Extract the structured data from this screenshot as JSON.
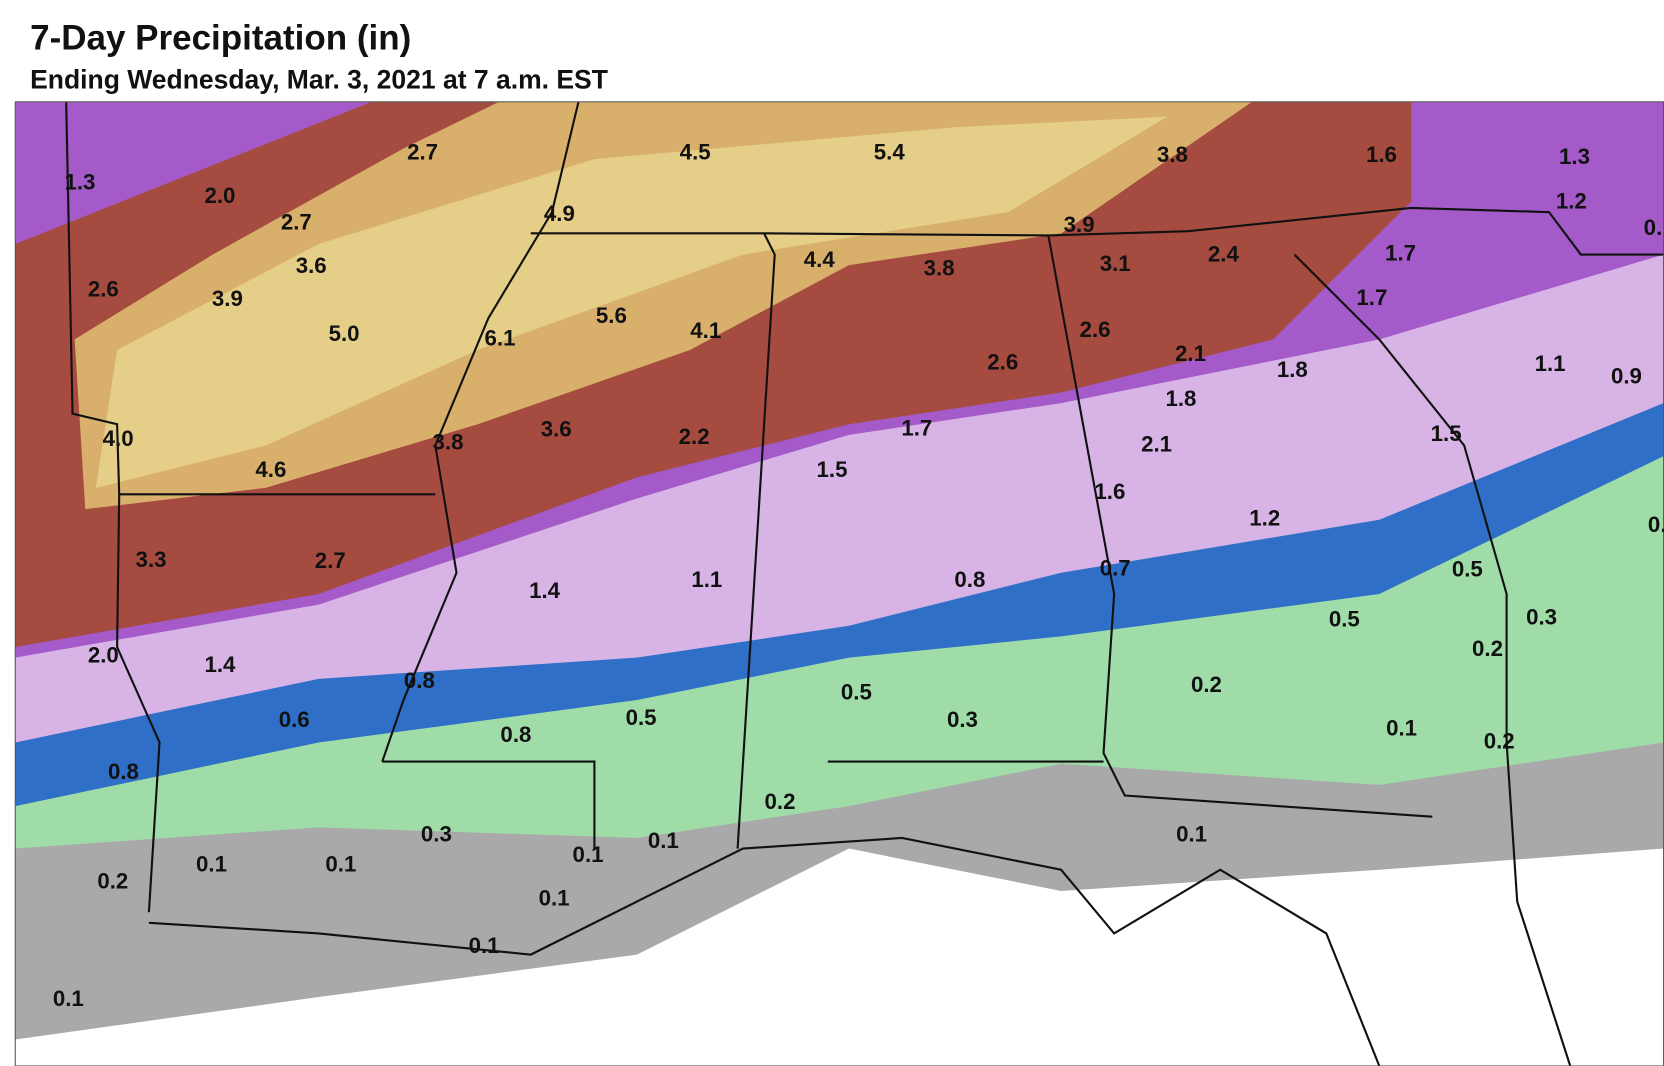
{
  "header": {
    "title": "7-Day Precipitation (in)",
    "subtitle": "Ending Wednesday, Mar. 3, 2021 at 7 a.m. EST"
  },
  "labels": [
    "1.3",
    "2.7",
    "4.5",
    "5.4",
    "3.8",
    "1.6",
    "1.3",
    "2.0",
    "1.2",
    "4.9",
    "2.7",
    "3.9",
    "4.4",
    "3.8",
    "3.1",
    "2.4",
    "1.7",
    "3.6",
    "2.6",
    "3.9",
    "1.7",
    "5.6",
    "5.0",
    "6.1",
    "4.1",
    "2.6",
    "2.1",
    "2.6",
    "1.8",
    "1.1",
    "0.9",
    "1.8",
    "1.7",
    "4.0",
    "3.8",
    "3.6",
    "2.2",
    "1.5",
    "2.1",
    "1.5",
    "4.6",
    "1.6",
    "1.2",
    "3.3",
    "2.7",
    "0.7",
    "0.5",
    "1.4",
    "1.1",
    "0.8",
    "0.5",
    "0.3",
    "2.0",
    "1.4",
    "0.2",
    "0.8",
    "0.2",
    "0.5",
    "0.6",
    "0.5",
    "0.3",
    "0.1",
    "0.2",
    "0.8",
    "0.8",
    "0.2",
    "0.3",
    "0.1",
    "0.1",
    "0.1",
    "0.1",
    "0.1",
    "0.2",
    "0.1",
    "0.1",
    "0.1",
    "0.",
    "0."
  ]
}
